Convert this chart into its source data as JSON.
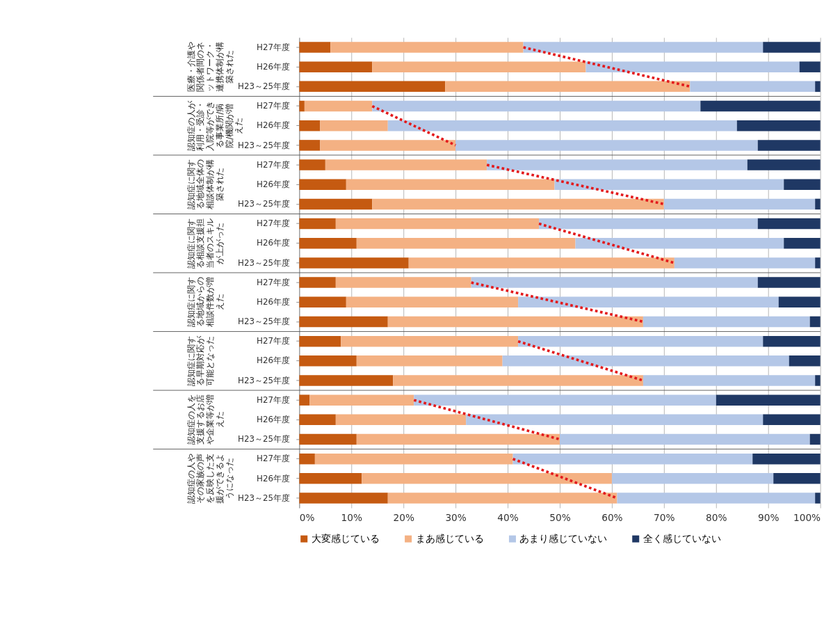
{
  "chart_data": {
    "type": "bar",
    "orientation": "horizontal",
    "stacked": true,
    "categories": [
      "H27年度",
      "H26年度",
      "H23～25年度",
      "H27年度",
      "H26年度",
      "H23～25年度",
      "H27年度",
      "H26年度",
      "H23～25年度",
      "H27年度",
      "H26年度",
      "H23～25年度",
      "H27年度",
      "H26年度",
      "H23～25年度",
      "H27年度",
      "H26年度",
      "H23～25年度",
      "H27年度",
      "H26年度",
      "H23～25年度",
      "H27年度",
      "H26年度",
      "H23～25年度"
    ],
    "annotations": [
      "医療・介護や関係者間のネットワーク・連携体制が構築された",
      "認知症の人が利用・受診・入院等ができる事業所/病院/機関が増えた",
      "認知症に関する地域全体の相談体制が構築された",
      "認知症に関する相談支援担当者のスキルが上がった",
      "認知症に関する地域からの相談件数が増えた",
      "認知症に関する早期対応が可能となった",
      "認知症の人を支援するお店や企業等が増えた",
      "認知症の人やその家族の声を反映した支援ができるようになった"
    ],
    "series": [
      {
        "name": "大変感じている",
        "color": "#c55a11",
        "values": [
          6,
          14,
          28,
          1,
          4,
          4,
          5,
          9,
          14,
          7,
          11,
          21,
          7,
          9,
          17,
          8,
          11,
          18,
          2,
          7,
          11,
          3,
          12,
          17
        ]
      },
      {
        "name": "まあ感じている",
        "color": "#f4b183",
        "values": [
          37,
          41,
          47,
          13,
          13,
          26,
          31,
          40,
          56,
          39,
          42,
          51,
          26,
          33,
          49,
          34,
          28,
          48,
          20,
          25,
          39,
          38,
          48,
          44
        ]
      },
      {
        "name": "あまり感じていない",
        "color": "#b4c7e7",
        "values": [
          46,
          41,
          24,
          63,
          67,
          58,
          50,
          44,
          29,
          42,
          40,
          27,
          55,
          50,
          32,
          47,
          55,
          33,
          58,
          57,
          48,
          46,
          31,
          38
        ]
      },
      {
        "name": "全く感じていない",
        "color": "#1f3864",
        "values": [
          11,
          4,
          1,
          23,
          16,
          12,
          14,
          7,
          1,
          12,
          7,
          1,
          12,
          8,
          2,
          11,
          6,
          1,
          20,
          11,
          2,
          13,
          9,
          1
        ]
      },
      {
        "type": "line",
        "color": "#e31a1c",
        "line_style": "dotted",
        "values": [
          43,
          null,
          75,
          null,
          null,
          null,
          null,
          null,
          null,
          null,
          null,
          null,
          null,
          null,
          null,
          null,
          null,
          null,
          null,
          null,
          null,
          null,
          null,
          null
        ]
      },
      {
        "type": "line",
        "color": "#e31a1c",
        "line_style": "dotted",
        "values": [
          null,
          null,
          null,
          14,
          null,
          30,
          null,
          null,
          null,
          null,
          null,
          null,
          null,
          null,
          null,
          null,
          null,
          null,
          null,
          null,
          null,
          null,
          null,
          null
        ]
      },
      {
        "type": "line",
        "color": "#e31a1c",
        "line_style": "dotted",
        "values": [
          null,
          null,
          null,
          null,
          null,
          null,
          36,
          null,
          70,
          null,
          null,
          null,
          null,
          null,
          null,
          null,
          null,
          null,
          null,
          null,
          null,
          null,
          null,
          null
        ]
      },
      {
        "type": "line",
        "color": "#e31a1c",
        "line_style": "dotted",
        "values": [
          null,
          null,
          null,
          null,
          null,
          null,
          null,
          null,
          null,
          46,
          null,
          72,
          null,
          null,
          null,
          null,
          null,
          null,
          null,
          null,
          null,
          null,
          null,
          null
        ]
      },
      {
        "type": "line",
        "color": "#e31a1c",
        "line_style": "dotted",
        "values": [
          null,
          null,
          null,
          null,
          null,
          null,
          null,
          null,
          null,
          null,
          null,
          null,
          33,
          null,
          66,
          null,
          null,
          null,
          null,
          null,
          null,
          null,
          null,
          null
        ]
      },
      {
        "type": "line",
        "color": "#e31a1c",
        "line_style": "dotted",
        "values": [
          null,
          null,
          null,
          null,
          null,
          null,
          null,
          null,
          null,
          null,
          null,
          null,
          null,
          null,
          null,
          42,
          null,
          66,
          null,
          null,
          null,
          null,
          null,
          null
        ]
      },
      {
        "type": "line",
        "color": "#e31a1c",
        "line_style": "dotted",
        "values": [
          null,
          null,
          null,
          null,
          null,
          null,
          null,
          null,
          null,
          null,
          null,
          null,
          null,
          null,
          null,
          null,
          null,
          null,
          22,
          null,
          50,
          null,
          null,
          null
        ]
      },
      {
        "type": "line",
        "color": "#e31a1c",
        "line_style": "dotted",
        "values": [
          null,
          null,
          null,
          null,
          null,
          null,
          null,
          null,
          null,
          null,
          null,
          null,
          null,
          null,
          null,
          null,
          null,
          null,
          null,
          null,
          null,
          41,
          null,
          61
        ]
      }
    ],
    "xlim": [
      0,
      100
    ],
    "xticks": [
      {
        "value": 0,
        "label": "0%"
      },
      {
        "value": 10,
        "label": "10%"
      },
      {
        "value": 20,
        "label": "20%"
      },
      {
        "value": 30,
        "label": "30%"
      },
      {
        "value": 40,
        "label": "40%"
      },
      {
        "value": 50,
        "label": "50%"
      },
      {
        "value": 60,
        "label": "60%"
      },
      {
        "value": 70,
        "label": "70%"
      },
      {
        "value": 80,
        "label": "80%"
      },
      {
        "value": 90,
        "label": "90%"
      },
      {
        "value": 100,
        "label": "100%"
      }
    ],
    "grid": "x",
    "legend": "bottom"
  }
}
